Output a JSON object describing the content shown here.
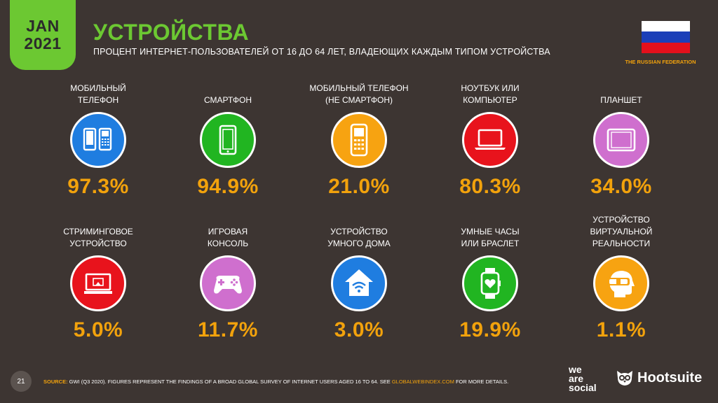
{
  "header": {
    "date_line1": "JAN",
    "date_line2": "2021",
    "title": "УСТРОЙСТВА",
    "subtitle": "ПРОЦЕНТ ИНТЕРНЕТ-ПОЛЬЗОВАТЕЛЕЙ ОТ 16 ДО 64 ЛЕТ, ВЛАДЕЮЩИХ КАЖДЫМ ТИПОМ УСТРОЙСТВА",
    "country": "THE RUSSIAN FEDERATION"
  },
  "colors": {
    "background": "#3d3532",
    "accent_green": "#6cc832",
    "value_orange": "#f2a20c",
    "flag_white": "#ffffff",
    "flag_blue": "#1c3fb8",
    "flag_red": "#e3101c"
  },
  "chart_data": {
    "type": "table",
    "unit": "%",
    "items": [
      {
        "label": "МОБИЛЬНЫЙ\nТЕЛЕФОН",
        "value": 97.3,
        "display": "97.3%",
        "icon": "mobile-phones-icon",
        "color": "#1f7de0"
      },
      {
        "label": "СМАРТФОН",
        "value": 94.9,
        "display": "94.9%",
        "icon": "smartphone-icon",
        "color": "#21b521"
      },
      {
        "label": "МОБИЛЬНЫЙ ТЕЛЕФОН\n(НЕ СМАРТФОН)",
        "value": 21.0,
        "display": "21.0%",
        "icon": "feature-phone-icon",
        "color": "#f7a311"
      },
      {
        "label": "НОУТБУК ИЛИ\nКОМПЬЮТЕР",
        "value": 80.3,
        "display": "80.3%",
        "icon": "laptop-icon",
        "color": "#e8131c"
      },
      {
        "label": "ПЛАНШЕТ",
        "value": 34.0,
        "display": "34.0%",
        "icon": "tablet-icon",
        "color": "#cf6fce"
      },
      {
        "label": "СТРИМИНГОВОЕ\nУСТРОЙСТВО",
        "value": 5.0,
        "display": "5.0%",
        "icon": "streaming-device-icon",
        "color": "#e8131c"
      },
      {
        "label": "ИГРОВАЯ\nКОНСОЛЬ",
        "value": 11.7,
        "display": "11.7%",
        "icon": "gamepad-icon",
        "color": "#cf6fce"
      },
      {
        "label": "УСТРОЙСТВО\nУМНОГО ДОМА",
        "value": 3.0,
        "display": "3.0%",
        "icon": "smart-home-icon",
        "color": "#1f7de0"
      },
      {
        "label": "УМНЫЕ ЧАСЫ\nИЛИ БРАСЛЕТ",
        "value": 19.9,
        "display": "19.9%",
        "icon": "smartwatch-icon",
        "color": "#21b521"
      },
      {
        "label": "УСТРОЙСТВО ВИРТУАЛЬНОЙ\nРЕАЛЬНОСТИ",
        "value": 1.1,
        "display": "1.1%",
        "icon": "vr-headset-icon",
        "color": "#f7a311"
      }
    ]
  },
  "footer": {
    "page_number": "21",
    "source_label": "SOURCE:",
    "source_text": " GWI (Q3 2020). FIGURES REPRESENT THE FINDINGS OF A BROAD GLOBAL SURVEY OF INTERNET USERS AGED 16 TO 64. SEE ",
    "source_link": "GLOBALWEBINDEX.COM",
    "source_tail": " FOR MORE DETAILS.",
    "brand1": "we\nare\nsocial",
    "brand2": "Hootsuite",
    "brand2_icon": "owl-icon"
  }
}
